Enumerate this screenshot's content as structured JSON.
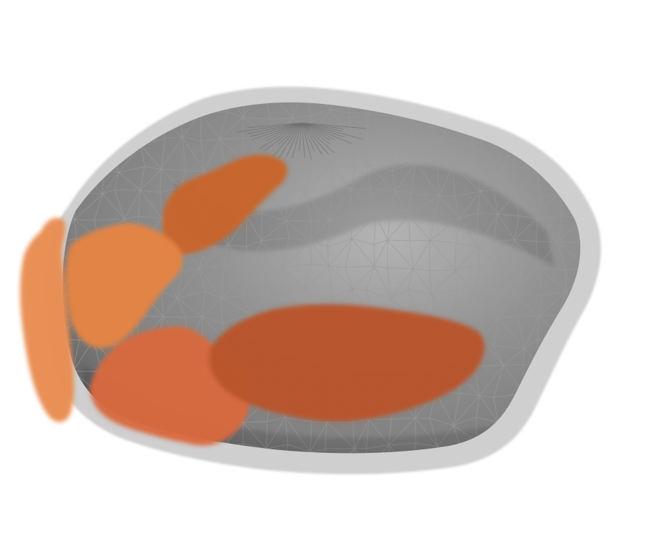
{
  "scene": {
    "background_color": "#ffffff",
    "halo_color": "#cfcfcf",
    "mesh_surface_color": "#808080",
    "mesh_highlight_color": "#b4b4b4",
    "mesh_shadow_color": "#5e5e5e",
    "mesh_line_color": "#9a9a9a",
    "mesh_line_dark_color": "#6d6d6d",
    "patches": [
      {
        "name": "upper-dark-orange",
        "color": "#c8642a"
      },
      {
        "name": "left-light-orange",
        "color": "#e88c50"
      },
      {
        "name": "inner-medium-orange",
        "color": "#e48444"
      },
      {
        "name": "lower-orange",
        "color": "#d8693e"
      },
      {
        "name": "bottom-dark-rust",
        "color": "#b9542a"
      }
    ]
  }
}
